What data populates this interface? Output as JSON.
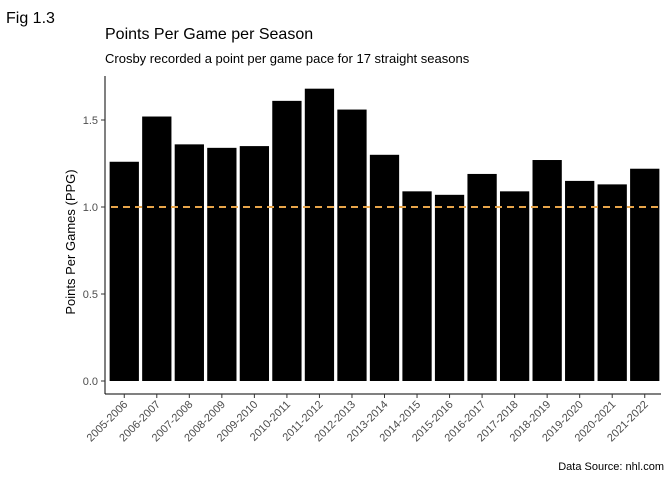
{
  "figure_label": "Fig 1.3",
  "colors": {
    "bar": "#000000",
    "reference_line": "#E8A54A",
    "background": "#ffffff"
  },
  "chart_data": {
    "type": "bar",
    "title": "Points Per Game per Season",
    "subtitle": "Crosby recorded a point per game pace for 17 straight seasons",
    "xlabel": "",
    "ylabel": "Points Per Games (PPG)",
    "caption": "Data Source: nhl.com",
    "categories": [
      "2005-2006",
      "2006-2007",
      "2007-2008",
      "2008-2009",
      "2009-2010",
      "2010-2011",
      "2011-2012",
      "2012-2013",
      "2013-2014",
      "2014-2015",
      "2015-2016",
      "2016-2017",
      "2017-2018",
      "2018-2019",
      "2019-2020",
      "2020-2021",
      "2021-2022"
    ],
    "values": [
      1.26,
      1.52,
      1.36,
      1.34,
      1.35,
      1.61,
      1.68,
      1.56,
      1.3,
      1.09,
      1.07,
      1.19,
      1.09,
      1.27,
      1.15,
      1.13,
      1.22
    ],
    "ylim": [
      0,
      1.72
    ],
    "yticks": [
      0.0,
      0.5,
      1.0,
      1.5
    ],
    "ytick_labels": [
      "0.0",
      "0.5",
      "1.0",
      "1.5"
    ],
    "reference_line": {
      "y": 1.0,
      "style": "dashed"
    },
    "grid": false,
    "legend": "none"
  }
}
